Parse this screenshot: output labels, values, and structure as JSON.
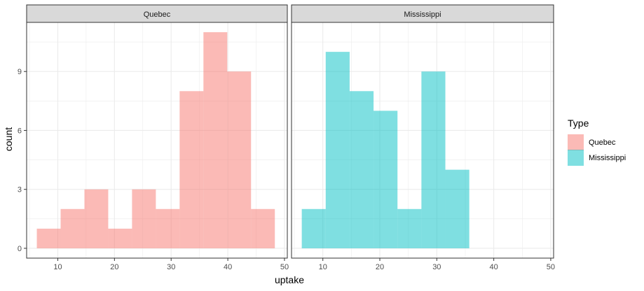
{
  "chart_data": {
    "type": "bar",
    "subtype": "faceted-histogram",
    "xlabel": "uptake",
    "ylabel": "count",
    "xlim": [
      4.5,
      50.5
    ],
    "ylim": [
      -0.5,
      11.5
    ],
    "x_ticks": [
      10,
      20,
      30,
      40,
      50
    ],
    "y_ticks": [
      0,
      3,
      6,
      9
    ],
    "grid": true,
    "legend": {
      "title": "Type",
      "position": "right",
      "entries": [
        {
          "label": "Quebec",
          "color": "#F8766D"
        },
        {
          "label": "Mississippi",
          "color": "#00BFC4"
        }
      ]
    },
    "panels": [
      {
        "strip": "Quebec",
        "color": "#F8766D",
        "bins": [
          {
            "x0": 6.3,
            "x1": 10.5,
            "count": 1
          },
          {
            "x0": 10.5,
            "x1": 14.7,
            "count": 2
          },
          {
            "x0": 14.7,
            "x1": 18.9,
            "count": 3
          },
          {
            "x0": 18.9,
            "x1": 23.1,
            "count": 1
          },
          {
            "x0": 23.1,
            "x1": 27.3,
            "count": 3
          },
          {
            "x0": 27.3,
            "x1": 31.5,
            "count": 2
          },
          {
            "x0": 31.5,
            "x1": 35.7,
            "count": 8
          },
          {
            "x0": 35.7,
            "x1": 39.9,
            "count": 11
          },
          {
            "x0": 39.9,
            "x1": 44.1,
            "count": 9
          },
          {
            "x0": 44.1,
            "x1": 48.3,
            "count": 2
          }
        ]
      },
      {
        "strip": "Mississippi",
        "color": "#00BFC4",
        "bins": [
          {
            "x0": 6.3,
            "x1": 10.5,
            "count": 2
          },
          {
            "x0": 10.5,
            "x1": 14.7,
            "count": 10
          },
          {
            "x0": 14.7,
            "x1": 18.9,
            "count": 8
          },
          {
            "x0": 18.9,
            "x1": 23.1,
            "count": 7
          },
          {
            "x0": 23.1,
            "x1": 27.3,
            "count": 2
          },
          {
            "x0": 27.3,
            "x1": 31.5,
            "count": 9
          },
          {
            "x0": 31.5,
            "x1": 35.7,
            "count": 4
          }
        ]
      }
    ]
  }
}
